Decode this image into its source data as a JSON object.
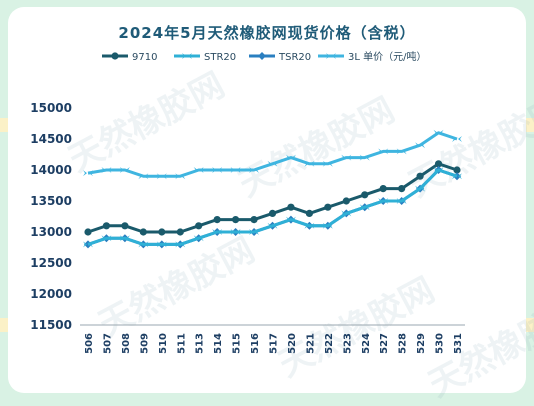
{
  "chart_data": {
    "type": "line",
    "title": "2024年5月天然橡胶网现货价格（含税）",
    "xlabel": "",
    "ylabel": "",
    "categories": [
      "506",
      "507",
      "508",
      "509",
      "510",
      "511",
      "513",
      "514",
      "515",
      "516",
      "517",
      "520",
      "521",
      "522",
      "523",
      "524",
      "527",
      "528",
      "529",
      "530",
      "531"
    ],
    "ylim": [
      11500,
      15000
    ],
    "yticks": [
      11500,
      12000,
      12500,
      13000,
      13500,
      14000,
      14500,
      15000
    ],
    "grid": false,
    "legend_position": "top",
    "series": [
      {
        "name": "9710",
        "color": "#1a5a6b",
        "marker": "circle",
        "values": [
          13000,
          13100,
          13100,
          13000,
          13000,
          13000,
          13100,
          13200,
          13200,
          13200,
          13300,
          13400,
          13300,
          13400,
          13500,
          13600,
          13700,
          13700,
          13900,
          14100,
          14000
        ]
      },
      {
        "name": "STR20",
        "color": "#2fb0d6",
        "marker": "arrow",
        "values": [
          12800,
          12900,
          12900,
          12800,
          12800,
          12800,
          12900,
          13000,
          13000,
          13000,
          13100,
          13200,
          13100,
          13100,
          13300,
          13400,
          13500,
          13500,
          13700,
          14000,
          13900
        ]
      },
      {
        "name": "TSR20",
        "color": "#2a7fc0",
        "marker": "diamond",
        "values": [
          12800,
          12900,
          12900,
          12800,
          12800,
          12800,
          12900,
          13000,
          13000,
          13000,
          13100,
          13200,
          13100,
          13100,
          13300,
          13400,
          13500,
          13500,
          13700,
          14000,
          13900
        ]
      },
      {
        "name": "3L 单价（元/吨）",
        "color": "#3fb5e0",
        "marker": "arrow",
        "values": [
          13950,
          14000,
          14000,
          13900,
          13900,
          13900,
          14000,
          14000,
          14000,
          14000,
          14100,
          14200,
          14100,
          14100,
          14200,
          14200,
          14300,
          14300,
          14400,
          14600,
          14500
        ]
      }
    ]
  },
  "watermark": "天然橡胶网"
}
